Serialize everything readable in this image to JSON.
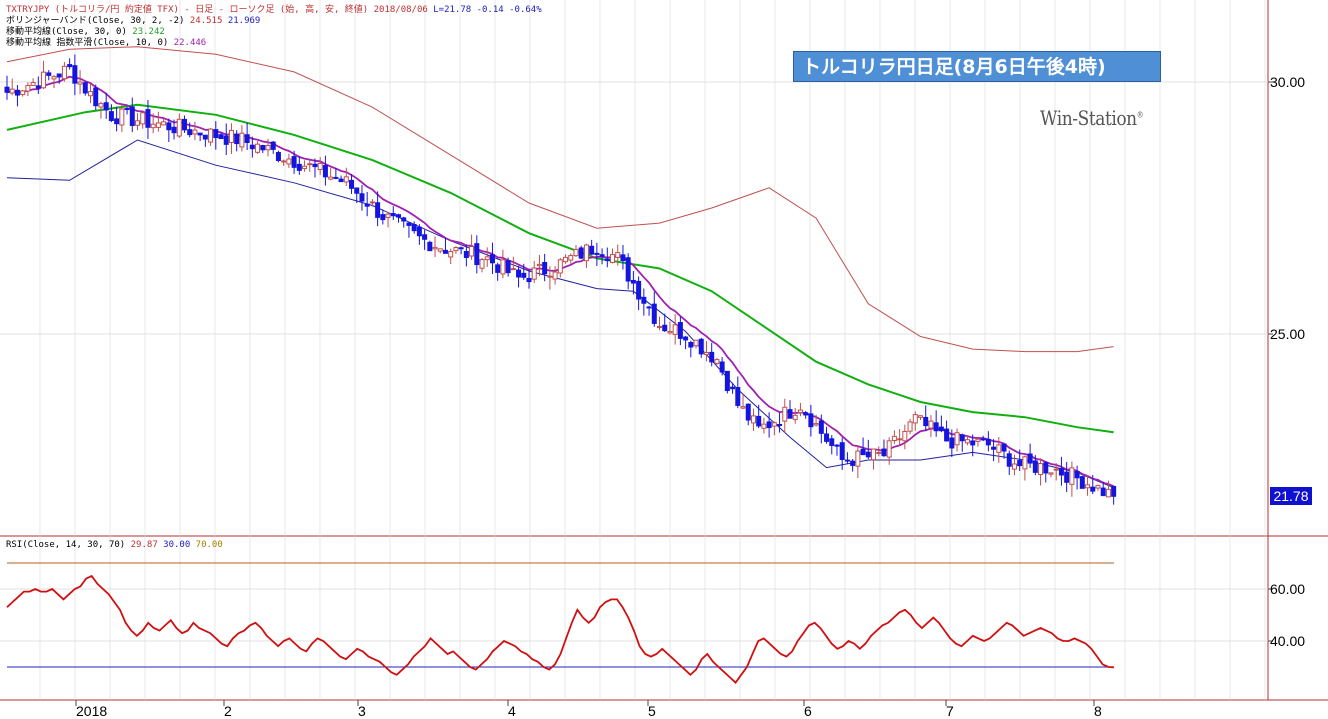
{
  "header": {
    "symbol_line_prefix": "TXTRYJPY (トルコリラ/円 約定値 TFX) - 日足 - ローソク足 (始, 高, 安, 終値)  2018/08/06 ",
    "last_info": "L=21.78",
    "change": "-0.14",
    "change_pct": "-0.64%",
    "bb_label": "ボリンジャーバンド(Close, 30, 2, -2)",
    "bb_upper": "24.515",
    "bb_lower": "21.969",
    "sma_label": "移動平均線(Close, 30, 0)",
    "sma_value": "23.242",
    "ema_label": "移動平均線 指数平滑(Close, 10, 0)",
    "ema_value": "22.446"
  },
  "banner": "トルコリラ円日足(8月6日午後4時)",
  "brand": "Win-Station",
  "brand_mark": "®",
  "price_axis": {
    "ticks": [
      "30.00",
      "25.00"
    ],
    "last": "21.78"
  },
  "rsi": {
    "label": "RSI(Close, 14, 30, 70)",
    "value": "29.87",
    "lower": "30.00",
    "upper": "70.00",
    "ticks": [
      "60.00",
      "40.00"
    ]
  },
  "x_axis": {
    "labels": [
      "2018",
      "2",
      "3",
      "4",
      "5",
      "6",
      "7",
      "8"
    ]
  },
  "colors": {
    "up_candle": "#c0504d",
    "down_candle": "#1515e0",
    "bb_upper": "#c05050",
    "bb_lower": "#2020a0",
    "sma": "#10b010",
    "ema": "#a020b0",
    "rsi_line": "#d01010",
    "rsi_upper": "#b06020",
    "rsi_lower": "#2020c0",
    "axis_border": "#b03030",
    "label_red": "#c03030",
    "label_green": "#20a020",
    "label_blue": "#2020c0"
  },
  "chart_data": [
    {
      "type": "candlestick",
      "xlabel": "",
      "ylabel": "",
      "ylim": [
        20.0,
        30.95
      ],
      "anchors": [
        [
          0,
          29.8
        ],
        [
          12,
          30.25
        ],
        [
          16,
          29.75
        ],
        [
          20,
          29.35
        ],
        [
          30,
          29.15
        ],
        [
          45,
          28.85
        ],
        [
          55,
          28.45
        ],
        [
          65,
          28.0
        ],
        [
          72,
          27.35
        ],
        [
          79,
          26.9
        ],
        [
          84,
          26.7
        ],
        [
          92,
          26.5
        ],
        [
          98,
          26.1
        ],
        [
          105,
          26.35
        ],
        [
          113,
          26.75
        ],
        [
          117,
          26.5
        ],
        [
          125,
          25.2
        ],
        [
          130,
          25.0
        ],
        [
          136,
          24.5
        ],
        [
          140,
          23.6
        ],
        [
          144,
          23.1
        ],
        [
          152,
          23.6
        ],
        [
          160,
          22.5
        ],
        [
          168,
          22.6
        ],
        [
          174,
          23.3
        ],
        [
          180,
          22.9
        ],
        [
          188,
          22.8
        ],
        [
          194,
          22.4
        ],
        [
          200,
          22.35
        ],
        [
          206,
          22.1
        ],
        [
          212,
          21.78
        ]
      ],
      "bollinger": {
        "upper": [
          [
            0,
            30.4
          ],
          [
            12,
            30.65
          ],
          [
            25,
            30.7
          ],
          [
            40,
            30.55
          ],
          [
            55,
            30.2
          ],
          [
            70,
            29.5
          ],
          [
            85,
            28.55
          ],
          [
            100,
            27.6
          ],
          [
            113,
            27.1
          ],
          [
            125,
            27.2
          ],
          [
            135,
            27.5
          ],
          [
            146,
            27.9
          ],
          [
            155,
            27.3
          ],
          [
            165,
            25.6
          ],
          [
            175,
            24.95
          ],
          [
            185,
            24.7
          ],
          [
            195,
            24.65
          ],
          [
            205,
            24.65
          ],
          [
            212,
            24.75
          ]
        ],
        "lower": [
          [
            0,
            28.1
          ],
          [
            12,
            28.05
          ],
          [
            25,
            28.85
          ],
          [
            40,
            28.35
          ],
          [
            55,
            28.0
          ],
          [
            70,
            27.55
          ],
          [
            85,
            26.85
          ],
          [
            100,
            26.25
          ],
          [
            113,
            25.9
          ],
          [
            120,
            25.85
          ],
          [
            130,
            25.05
          ],
          [
            140,
            23.9
          ],
          [
            150,
            22.95
          ],
          [
            157,
            22.35
          ],
          [
            165,
            22.5
          ],
          [
            175,
            22.5
          ],
          [
            185,
            22.65
          ],
          [
            195,
            22.5
          ],
          [
            205,
            22.25
          ],
          [
            212,
            21.95
          ]
        ]
      },
      "sma": [
        [
          0,
          29.05
        ],
        [
          15,
          29.4
        ],
        [
          25,
          29.55
        ],
        [
          40,
          29.35
        ],
        [
          55,
          28.95
        ],
        [
          70,
          28.45
        ],
        [
          85,
          27.8
        ],
        [
          100,
          27.0
        ],
        [
          113,
          26.5
        ],
        [
          125,
          26.3
        ],
        [
          135,
          25.85
        ],
        [
          145,
          25.15
        ],
        [
          155,
          24.45
        ],
        [
          165,
          24.0
        ],
        [
          175,
          23.65
        ],
        [
          185,
          23.45
        ],
        [
          195,
          23.35
        ],
        [
          205,
          23.15
        ],
        [
          212,
          23.05
        ]
      ]
    },
    {
      "type": "line",
      "title": "RSI",
      "xlabel": "",
      "ylabel": "",
      "ylim": [
        20,
        80
      ],
      "series": [
        {
          "values": [
            53,
            55,
            57,
            59,
            59,
            60,
            59,
            59,
            60,
            58,
            56,
            58,
            60,
            61,
            64,
            65,
            62,
            60,
            58,
            55,
            52,
            47,
            44,
            42,
            44,
            47,
            45,
            44,
            46,
            48,
            45,
            43,
            44,
            47,
            45,
            44,
            43,
            41,
            39,
            38,
            41,
            43,
            44,
            46,
            47,
            45,
            42,
            40,
            38,
            40,
            41,
            39,
            37,
            36,
            39,
            41,
            40,
            38,
            36,
            34,
            33,
            35,
            37,
            36,
            34,
            33,
            32,
            30,
            28,
            27,
            29,
            31,
            34,
            36,
            38,
            41,
            39,
            37,
            35,
            36,
            34,
            32,
            30,
            29,
            31,
            33,
            36,
            38,
            40,
            39,
            38,
            36,
            35,
            33,
            32,
            30,
            29,
            31,
            35,
            41,
            47,
            52,
            49,
            47,
            49,
            53,
            55,
            56,
            56,
            53,
            49,
            44,
            38,
            35,
            34,
            35,
            37,
            35,
            33,
            31,
            29,
            27,
            29,
            33,
            35,
            32,
            30,
            28,
            26,
            24,
            27,
            30,
            35,
            40,
            41,
            39,
            37,
            35,
            34,
            36,
            40,
            43,
            46,
            47,
            45,
            42,
            39,
            37,
            38,
            40,
            39,
            37,
            39,
            42,
            44,
            46,
            47,
            49,
            51,
            52,
            50,
            47,
            45,
            47,
            49,
            47,
            44,
            41,
            39,
            38,
            40,
            42,
            41,
            40,
            41,
            43,
            45,
            47,
            46,
            44,
            42,
            43,
            44,
            45,
            44,
            43,
            41,
            40,
            40,
            41,
            40,
            39,
            37,
            34,
            31,
            30,
            29.87
          ]
        }
      ],
      "lower": 30.0,
      "upper": 70.0,
      "ticks": [
        60,
        40
      ]
    }
  ]
}
